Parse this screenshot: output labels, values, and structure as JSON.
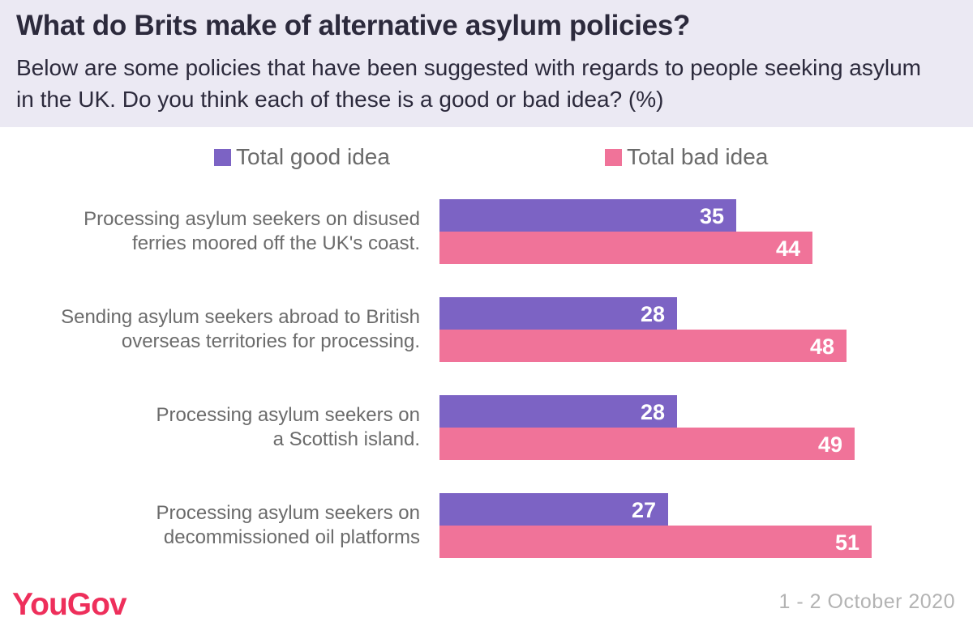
{
  "header": {
    "title": "What do Brits make of alternative asylum policies?",
    "subtitle": "Below are some policies that have been suggested with regards to people seeking asylum in the UK. Do you think each of these is a good or bad idea? (%)"
  },
  "footer": {
    "brand": "YouGov",
    "date": "1 - 2 October 2020"
  },
  "colors": {
    "good": "#7c63c4",
    "bad": "#f07399",
    "header_bg": "#ebe9f3",
    "brand": "#ee2f5b"
  },
  "chart_data": {
    "type": "bar",
    "orientation": "horizontal",
    "categories": [
      "Processing asylum seekers on disused ferries moored off the UK's coast.",
      "Sending asylum seekers abroad to British overseas territories for processing.",
      "Processing asylum seekers on a Scottish island.",
      "Processing asylum seekers on decommissioned oil platforms"
    ],
    "category_lines": [
      [
        "Processing asylum seekers on disused",
        "ferries moored off the UK's coast."
      ],
      [
        "Sending asylum seekers abroad to British",
        "overseas territories for processing."
      ],
      [
        "Processing asylum seekers on",
        "a Scottish island."
      ],
      [
        "Processing asylum seekers on",
        "decommissioned oil platforms"
      ]
    ],
    "series": [
      {
        "name": "Total good idea",
        "values": [
          35,
          28,
          28,
          27
        ]
      },
      {
        "name": "Total bad idea",
        "values": [
          44,
          48,
          49,
          51
        ]
      }
    ],
    "legend_position": "top",
    "data_labels": true,
    "grid": false
  }
}
